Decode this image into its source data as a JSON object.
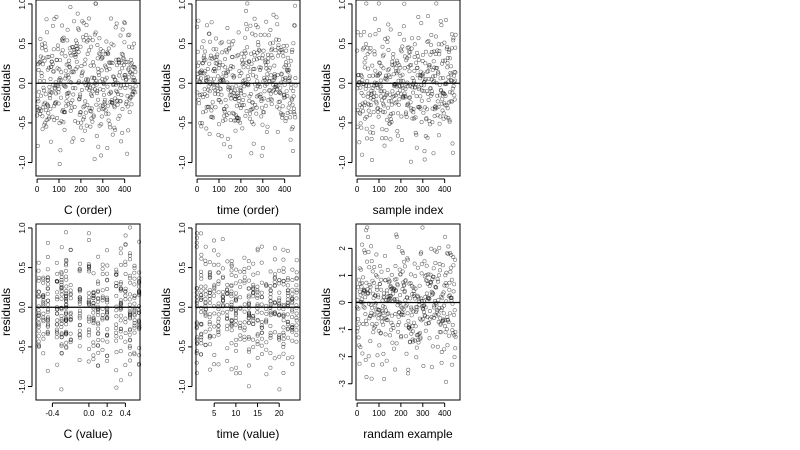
{
  "chart_data": [
    {
      "type": "scatter",
      "xlabel": "C (order)",
      "ylabel": "residuals",
      "xlim": [
        -5,
        470
      ],
      "ylim": [
        -1.17,
        1.05
      ],
      "xticks": [
        0,
        100,
        200,
        300,
        400
      ],
      "xtick_labels": [
        "0",
        "100",
        "200",
        "300",
        "400"
      ],
      "yticks": [
        -1.0,
        -0.5,
        0.0,
        0.5,
        1.0
      ],
      "ytick_labels": [
        "-1.0",
        "-0.5",
        "0.0",
        "0.5",
        "1.0"
      ],
      "reference_line_y": 0,
      "point_count": 450,
      "seed": 11
    },
    {
      "type": "scatter",
      "xlabel": "time (order)",
      "ylabel": "residuals",
      "xlim": [
        -5,
        470
      ],
      "ylim": [
        -1.17,
        1.05
      ],
      "xticks": [
        0,
        100,
        200,
        300,
        400
      ],
      "xtick_labels": [
        "0",
        "100",
        "200",
        "300",
        "400"
      ],
      "yticks": [
        -1.0,
        -0.5,
        0.0,
        0.5,
        1.0
      ],
      "ytick_labels": [
        "-1.0",
        "-0.5",
        "0.0",
        "0.5",
        "1.0"
      ],
      "reference_line_y": 0,
      "point_count": 450,
      "seed": 23
    },
    {
      "type": "scatter",
      "xlabel": "sample index",
      "ylabel": "residuals",
      "xlim": [
        -5,
        470
      ],
      "ylim": [
        -1.17,
        1.05
      ],
      "xticks": [
        0,
        100,
        200,
        300,
        400
      ],
      "xtick_labels": [
        "0",
        "100",
        "200",
        "300",
        "400"
      ],
      "yticks": [
        -1.0,
        -0.5,
        0.0,
        0.5,
        1.0
      ],
      "ytick_labels": [
        "-1.0",
        "-0.5",
        "0.0",
        "0.5",
        "1.0"
      ],
      "reference_line_y": 0,
      "point_count": 450,
      "seed": 37
    },
    {
      "type": "scatter",
      "xlabel": "C (value)",
      "ylabel": "residuals",
      "xlim": [
        -0.58,
        0.56
      ],
      "ylim": [
        -1.17,
        1.05
      ],
      "xticks": [
        -0.4,
        0.0,
        0.2,
        0.4
      ],
      "xtick_labels": [
        "-0.4",
        "0.0",
        "0.2",
        "0.4"
      ],
      "yticks": [
        -1.0,
        -0.5,
        0.0,
        0.5,
        1.0
      ],
      "ytick_labels": [
        "-1.0",
        "-0.5",
        "0.0",
        "0.5",
        "1.0"
      ],
      "reference_line_y": 0,
      "point_count": 450,
      "seed": 41,
      "x_levels": [
        -0.55,
        -0.5,
        -0.45,
        -0.35,
        -0.3,
        -0.25,
        -0.2,
        -0.1,
        0.0,
        0.05,
        0.1,
        0.15,
        0.2,
        0.3,
        0.35,
        0.4,
        0.45,
        0.5,
        0.55
      ]
    },
    {
      "type": "scatter",
      "xlabel": "time (value)",
      "ylabel": "residuals",
      "xlim": [
        0.8,
        24.8
      ],
      "ylim": [
        -1.17,
        1.05
      ],
      "xticks": [
        5,
        10,
        15,
        20
      ],
      "xtick_labels": [
        "5",
        "10",
        "15",
        "20"
      ],
      "yticks": [
        -1.0,
        -0.5,
        0.0,
        0.5,
        1.0
      ],
      "ytick_labels": [
        "-1.0",
        "-0.5",
        "0.0",
        "0.5",
        "1.0"
      ],
      "reference_line_y": 0,
      "point_count": 450,
      "seed": 53,
      "x_levels": [
        1,
        2,
        3,
        4,
        5,
        6,
        7,
        8,
        9,
        10,
        11,
        12,
        13,
        14,
        15,
        16,
        17,
        18,
        19,
        20,
        21,
        22,
        23,
        24
      ]
    },
    {
      "type": "scatter",
      "xlabel": "randam example",
      "ylabel": "residuals",
      "xlim": [
        -5,
        470
      ],
      "ylim": [
        -3.6,
        2.9
      ],
      "xticks": [
        0,
        100,
        200,
        300,
        400
      ],
      "xtick_labels": [
        "0",
        "100",
        "200",
        "300",
        "400"
      ],
      "yticks": [
        -3,
        -2,
        -1,
        0,
        1,
        2
      ],
      "ytick_labels": [
        "-3",
        "-2",
        "-1",
        "0",
        "1",
        "2"
      ],
      "reference_line_y": 0,
      "point_count": 450,
      "seed": 67
    }
  ]
}
